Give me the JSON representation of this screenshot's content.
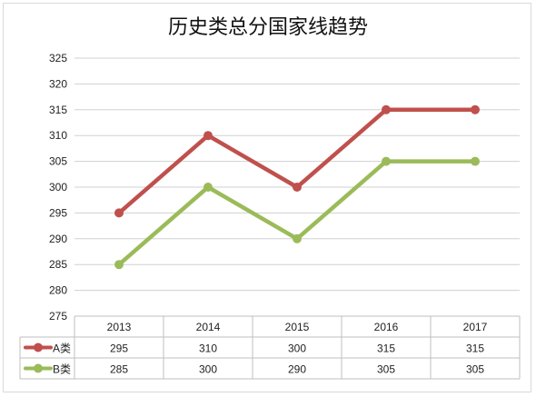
{
  "chart_data": {
    "type": "line",
    "title": "历史类总分国家线趋势",
    "xlabel": "",
    "ylabel": "",
    "categories": [
      "2013",
      "2014",
      "2015",
      "2016",
      "2017"
    ],
    "ylim": [
      275,
      325
    ],
    "yticks": [
      275,
      280,
      285,
      290,
      295,
      300,
      305,
      310,
      315,
      320,
      325
    ],
    "yticks_labels": [
      "275",
      "280",
      "285",
      "290",
      "295",
      "300",
      "305",
      "310",
      "315",
      "320",
      "325"
    ],
    "grid": true,
    "legend": "data-table",
    "series": [
      {
        "name": "A类",
        "color": "#c0504d",
        "values": [
          295,
          310,
          300,
          315,
          315
        ],
        "labels": [
          "295",
          "310",
          "300",
          "315",
          "315"
        ]
      },
      {
        "name": "B类",
        "color": "#9bbb59",
        "values": [
          285,
          300,
          290,
          305,
          305
        ],
        "labels": [
          "285",
          "300",
          "290",
          "305",
          "305"
        ]
      }
    ]
  }
}
